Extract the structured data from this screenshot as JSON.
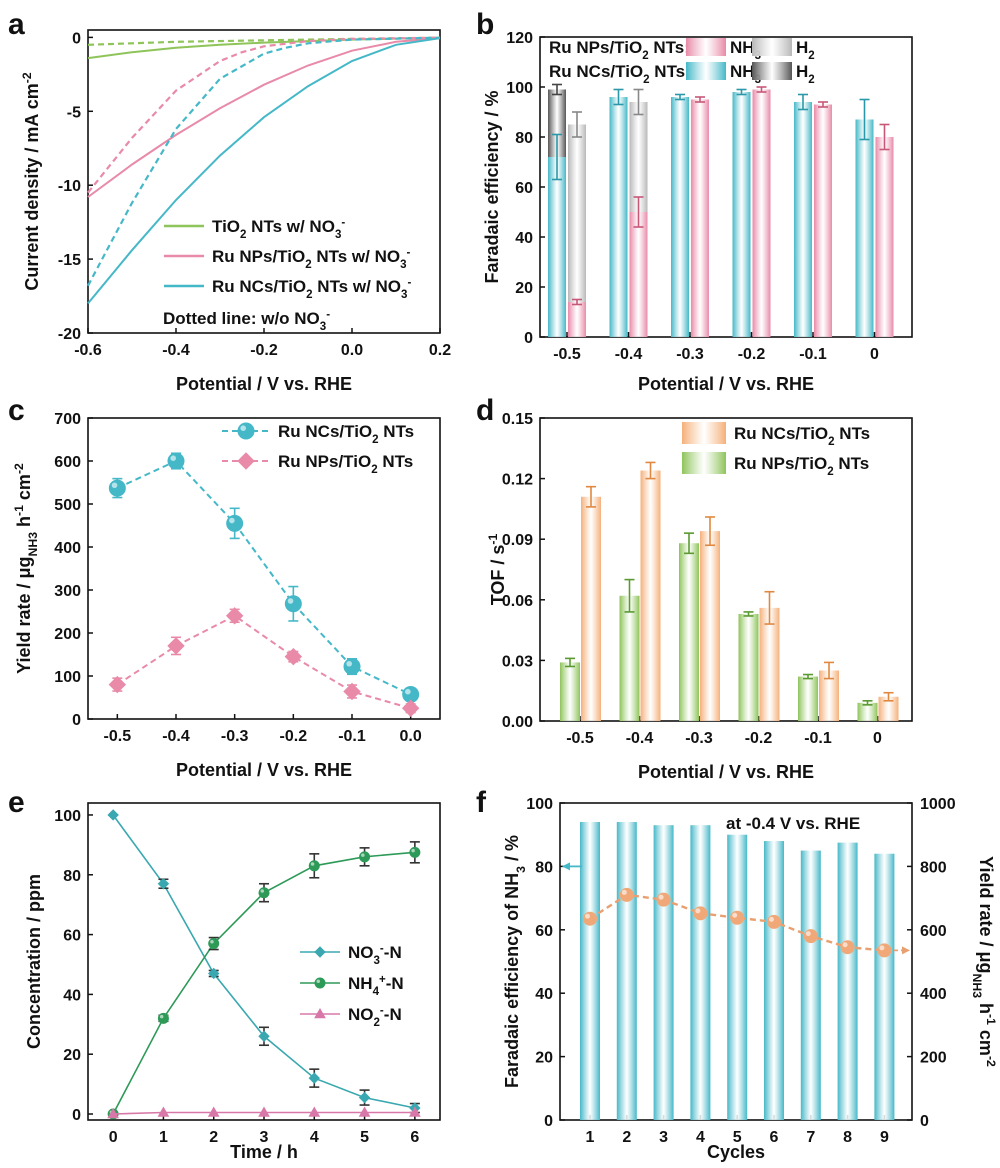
{
  "colors": {
    "cyan": "#45b8c8",
    "pink": "#e88aa8",
    "green": "#8ec45a",
    "orange": "#f5b07a",
    "gray_light": "#b8b8b8",
    "gray_dark": "#555555",
    "teal": "#3aa8b0",
    "green_dark": "#2e9a58",
    "magenta": "#d878a8",
    "axis": "#111111"
  },
  "chart_data": [
    {
      "id": "a",
      "panel_label": "a",
      "type": "line",
      "xlabel": "Potential / V vs. RHE",
      "ylabel": "Current density /  mA cm",
      "ylabel_sup": "-2",
      "xlim": [
        -0.6,
        0.2
      ],
      "ylim": [
        -20,
        0.5
      ],
      "xticks": [
        -0.6,
        -0.4,
        -0.2,
        0.0,
        0.2
      ],
      "xtick_labels": [
        "-0.6",
        "-0.4",
        "-0.2",
        "0.0",
        "0.2"
      ],
      "yticks": [
        0,
        -5,
        -10,
        -15,
        -20
      ],
      "ytick_labels": [
        "0",
        "-5",
        "-10",
        "-15",
        "-20"
      ],
      "series": [
        {
          "name": "TiO2 NTs w/ NO3-",
          "color": "green",
          "dashed": false,
          "x": [
            -0.6,
            -0.5,
            -0.4,
            -0.3,
            -0.2,
            -0.1,
            0.0,
            0.1,
            0.2
          ],
          "y": [
            -1.4,
            -1.0,
            -0.7,
            -0.5,
            -0.35,
            -0.25,
            -0.15,
            -0.08,
            -0.03
          ]
        },
        {
          "name": "TiO2 NTs w/o NO3-",
          "color": "green",
          "dashed": true,
          "x": [
            -0.6,
            -0.4,
            -0.2,
            0.0,
            0.2
          ],
          "y": [
            -0.5,
            -0.3,
            -0.2,
            -0.1,
            -0.02
          ]
        },
        {
          "name": "Ru NPs/TiO2 NTs w/ NO3-",
          "color": "pink",
          "dashed": false,
          "x": [
            -0.6,
            -0.5,
            -0.4,
            -0.3,
            -0.2,
            -0.1,
            0.0,
            0.1,
            0.2
          ],
          "y": [
            -10.8,
            -8.6,
            -6.6,
            -4.8,
            -3.2,
            -1.9,
            -0.9,
            -0.3,
            -0.05
          ]
        },
        {
          "name": "Ru NPs/TiO2 NTs w/o NO3-",
          "color": "pink",
          "dashed": true,
          "x": [
            -0.6,
            -0.5,
            -0.4,
            -0.3,
            -0.25,
            -0.2,
            -0.1,
            0.0,
            0.2
          ],
          "y": [
            -10.5,
            -6.8,
            -3.6,
            -1.6,
            -1.0,
            -0.6,
            -0.25,
            -0.1,
            -0.02
          ]
        },
        {
          "name": "Ru NCs/TiO2 NTs w/ NO3-",
          "color": "cyan",
          "dashed": false,
          "x": [
            -0.6,
            -0.5,
            -0.4,
            -0.3,
            -0.2,
            -0.1,
            0.0,
            0.1,
            0.2
          ],
          "y": [
            -18.0,
            -14.4,
            -11.0,
            -8.0,
            -5.4,
            -3.3,
            -1.6,
            -0.5,
            -0.05
          ]
        },
        {
          "name": "Ru NCs/TiO2 NTs w/o NO3-",
          "color": "cyan",
          "dashed": true,
          "x": [
            -0.6,
            -0.5,
            -0.4,
            -0.3,
            -0.2,
            -0.15,
            -0.1,
            0.0,
            0.2
          ],
          "y": [
            -16.8,
            -11.2,
            -6.2,
            -2.8,
            -1.1,
            -0.7,
            -0.4,
            -0.15,
            -0.02
          ]
        }
      ],
      "legend": [
        {
          "pre": "TiO",
          "sub": "2",
          "mid": " NTs w/ NO",
          "sub2": "3",
          "sup": "-",
          "color": "green"
        },
        {
          "pre": "Ru NPs/TiO",
          "sub": "2",
          "mid": " NTs w/ NO",
          "sub2": "3",
          "sup": "-",
          "color": "pink"
        },
        {
          "pre": "Ru NCs/TiO",
          "sub": "2",
          "mid": " NTs w/ NO",
          "sub2": "3",
          "sup": "-",
          "color": "cyan"
        }
      ],
      "annotation": {
        "pre": "Dotted line: w/o NO",
        "sub": "3",
        "sup": "-"
      }
    },
    {
      "id": "b",
      "panel_label": "b",
      "type": "bar",
      "xlabel": "Potential / V vs. RHE",
      "ylabel": "Faradaic efficiency / %",
      "ylim": [
        0,
        120
      ],
      "yticks": [
        0,
        20,
        40,
        60,
        80,
        100,
        120
      ],
      "categories": [
        "-0.5",
        "-0.4",
        "-0.3",
        "-0.2",
        "-0.1",
        "0"
      ],
      "series": [
        {
          "name": "Ru NCs/TiO2 NTs NH3",
          "color": "cyan",
          "values": [
            72,
            96,
            96,
            98,
            94,
            87
          ],
          "err": [
            9,
            3,
            1,
            1,
            3,
            8
          ]
        },
        {
          "name": "Ru NCs/TiO2 NTs H2",
          "color": "gray_dark",
          "values": [
            27,
            0,
            0,
            0,
            0,
            0
          ],
          "err": [
            2,
            0,
            0,
            0,
            0,
            0
          ]
        },
        {
          "name": "Ru NPs/TiO2 NTs NH3",
          "color": "pink",
          "values": [
            14,
            50,
            95,
            99,
            93,
            80
          ],
          "err": [
            1,
            6,
            1,
            1,
            1,
            5
          ]
        },
        {
          "name": "Ru NPs/TiO2 NTs H2",
          "color": "gray_light",
          "values": [
            71,
            44,
            0,
            0,
            0,
            0
          ],
          "err": [
            5,
            5,
            0,
            0,
            0,
            0
          ]
        }
      ],
      "legend_rows": [
        {
          "label_pre": "Ru NPs/TiO",
          "label_sub": "2",
          "label_post": " NTs:",
          "nh3_color": "pink",
          "h2_color": "gray_light",
          "nh3_pre": "NH",
          "nh3_sub": "3",
          "h2_pre": "H",
          "h2_sub": "2"
        },
        {
          "label_pre": "Ru NCs/TiO",
          "label_sub": "2",
          "label_post": " NTs:",
          "nh3_color": "cyan",
          "h2_color": "gray_dark",
          "nh3_pre": "NH",
          "nh3_sub": "3",
          "h2_pre": "H",
          "h2_sub": "2"
        }
      ]
    },
    {
      "id": "c",
      "panel_label": "c",
      "type": "line",
      "xlabel": "Potential / V vs. RHE",
      "ylabel_pre": "Yield rate / μg",
      "ylabel_sub": "NH3",
      "ylabel_post": " h",
      "ylabel_sup1": "-1",
      "ylabel_post2": " cm",
      "ylabel_sup2": "-2",
      "xlim": [
        -0.55,
        0.05
      ],
      "ylim": [
        0,
        700
      ],
      "xticks": [
        -0.5,
        -0.4,
        -0.3,
        -0.2,
        -0.1,
        0.0
      ],
      "xtick_labels": [
        "-0.5",
        "-0.4",
        "-0.3",
        "-0.2",
        "-0.1",
        "0.0"
      ],
      "yticks": [
        0,
        100,
        200,
        300,
        400,
        500,
        600,
        700
      ],
      "series": [
        {
          "name": "Ru NCs/TiO2 NTs",
          "color": "cyan",
          "marker": "circle",
          "x": [
            -0.5,
            -0.4,
            -0.3,
            -0.2,
            -0.1,
            0.0
          ],
          "y": [
            537,
            600,
            455,
            268,
            122,
            57
          ],
          "err": [
            22,
            18,
            35,
            40,
            18,
            8
          ]
        },
        {
          "name": "Ru NPs/TiO2 NTs",
          "color": "pink",
          "marker": "diamond",
          "x": [
            -0.5,
            -0.4,
            -0.3,
            -0.2,
            -0.1,
            0.0
          ],
          "y": [
            80,
            170,
            240,
            145,
            64,
            25
          ],
          "err": [
            15,
            20,
            15,
            12,
            15,
            10
          ]
        }
      ],
      "legend": [
        {
          "pre": "Ru NCs/TiO",
          "sub": "2",
          "post": " NTs",
          "color": "cyan",
          "marker": "circle"
        },
        {
          "pre": "Ru NPs/TiO",
          "sub": "2",
          "post": " NTs",
          "color": "pink",
          "marker": "diamond"
        }
      ]
    },
    {
      "id": "d",
      "panel_label": "d",
      "type": "bar",
      "xlabel": "Potential / V vs. RHE",
      "ylabel": "TOF / s",
      "ylabel_sup": "-1",
      "ylim": [
        0,
        0.15
      ],
      "yticks": [
        0,
        0.03,
        0.06,
        0.09,
        0.12,
        0.15
      ],
      "ytick_labels": [
        "0.00",
        "0.03",
        "0.06",
        "0.09",
        "0.12",
        "0.15"
      ],
      "categories": [
        "-0.5",
        "-0.4",
        "-0.3",
        "-0.2",
        "-0.1",
        "0"
      ],
      "series": [
        {
          "name": "Ru NPs/TiO2 NTs",
          "color": "green",
          "values": [
            0.029,
            0.062,
            0.088,
            0.053,
            0.022,
            0.009
          ],
          "err": [
            0.002,
            0.008,
            0.005,
            0.001,
            0.001,
            0.001
          ]
        },
        {
          "name": "Ru NCs/TiO2 NTs",
          "color": "orange",
          "values": [
            0.111,
            0.124,
            0.094,
            0.056,
            0.025,
            0.012
          ],
          "err": [
            0.005,
            0.004,
            0.007,
            0.008,
            0.004,
            0.002
          ]
        }
      ],
      "legend": [
        {
          "pre": "Ru NCs/TiO",
          "sub": "2",
          "post": " NTs",
          "color": "orange"
        },
        {
          "pre": "Ru NPs/TiO",
          "sub": "2",
          "post": " NTs",
          "color": "green"
        }
      ]
    },
    {
      "id": "e",
      "panel_label": "e",
      "type": "line",
      "xlabel": "Time / h",
      "ylabel": "Concentration / ppm",
      "xlim": [
        -0.5,
        6.5
      ],
      "ylim": [
        -2,
        104
      ],
      "xticks": [
        0,
        1,
        2,
        3,
        4,
        5,
        6
      ],
      "yticks": [
        0,
        20,
        40,
        60,
        80,
        100
      ],
      "series": [
        {
          "name": "NO3--N",
          "color": "teal",
          "marker": "diamond",
          "x": [
            0,
            1,
            2,
            3,
            4,
            5,
            6
          ],
          "y": [
            100,
            77,
            47,
            26,
            12,
            5.5,
            2
          ],
          "err": [
            0,
            1.5,
            1,
            3,
            3,
            2.5,
            1.5
          ]
        },
        {
          "name": "NH4+-N",
          "color": "green_dark",
          "marker": "circle",
          "x": [
            0,
            1,
            2,
            3,
            4,
            5,
            6
          ],
          "y": [
            0,
            32,
            57,
            74,
            83,
            86,
            87.5
          ],
          "err": [
            0,
            1,
            2,
            3,
            4,
            3,
            3.5
          ]
        },
        {
          "name": "NO2--N",
          "color": "magenta",
          "marker": "triangle",
          "x": [
            0,
            1,
            2,
            3,
            4,
            5,
            6
          ],
          "y": [
            0,
            0.5,
            0.5,
            0.5,
            0.5,
            0.5,
            0.5
          ],
          "err": [
            0,
            0,
            0,
            0,
            0,
            0,
            0
          ]
        }
      ],
      "legend": [
        {
          "pre": "NO",
          "sub": "3",
          "sup": "-",
          "post": "-N",
          "color": "teal",
          "marker": "diamond"
        },
        {
          "pre": "NH",
          "sub": "4",
          "sup": "+",
          "post": "-N",
          "color": "green_dark",
          "marker": "circle"
        },
        {
          "pre": "NO",
          "sub": "2",
          "sup": "-",
          "post": "-N",
          "color": "magenta",
          "marker": "triangle"
        }
      ]
    },
    {
      "id": "f",
      "panel_label": "f",
      "type": "bar",
      "xlabel": "Cycles",
      "ylabel_pre": "Faradaic efficiency of NH",
      "ylabel_sub": "3",
      "ylabel_post": " / %",
      "y2label_pre": "Yield rate / μg",
      "y2label_sub": "NH3",
      "y2label_post": " h",
      "y2label_sup1": "-1",
      "y2label_post2": " cm",
      "y2label_sup2": "-2",
      "annotation": "at -0.4 V vs. RHE",
      "ylim": [
        0,
        100
      ],
      "yticks": [
        0,
        20,
        40,
        60,
        80,
        100
      ],
      "y2lim": [
        0,
        1000
      ],
      "y2ticks": [
        0,
        200,
        400,
        600,
        800,
        1000
      ],
      "categories": [
        "1",
        "2",
        "3",
        "4",
        "5",
        "6",
        "7",
        "8",
        "9"
      ],
      "fe_values": [
        94,
        94,
        93,
        93,
        90,
        88,
        85,
        87.5,
        84
      ],
      "yield_values": [
        635,
        710,
        695,
        652,
        638,
        625,
        580,
        545,
        535
      ]
    }
  ]
}
